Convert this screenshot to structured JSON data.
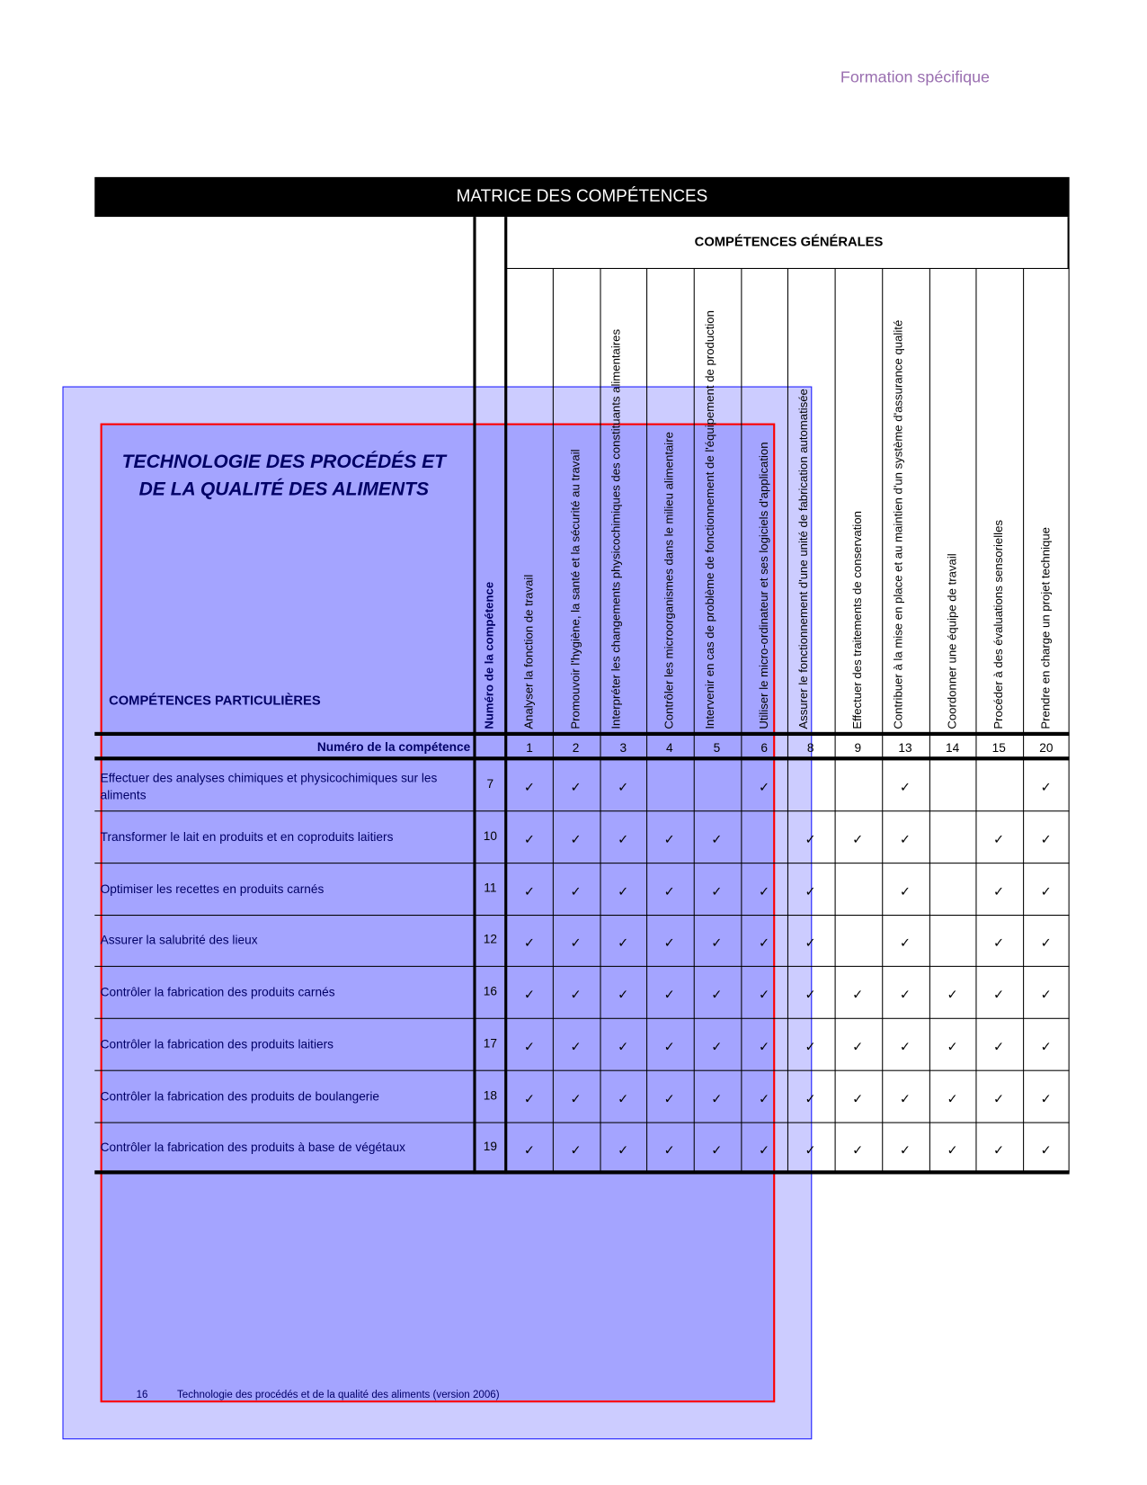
{
  "header_right": "Formation spécifique",
  "matrix_title": "MATRICE DES COMPÉTENCES",
  "general_title": "COMPÉTENCES GÉNÉRALES",
  "program_title_line1": "TECHNOLOGIE DES PROCÉDÉS ET",
  "program_title_line2": "DE LA QUALITÉ DES ALIMENTS",
  "particular_title": "COMPÉTENCES PARTICULIÈRES",
  "number_column_label": "Numéro de la compétence",
  "number_row_label": "Numéro de la compétence",
  "check_glyph": "✓",
  "general_competencies": [
    {
      "label": "Analyser la fonction de travail",
      "number": "1"
    },
    {
      "label": "Promouvoir l'hygiène, la santé et la sécurité au travail",
      "number": "2"
    },
    {
      "label": "Interpréter les changements physicochimiques des constituants alimentaires",
      "number": "3"
    },
    {
      "label": "Contrôler les microorganismes dans le milieu alimentaire",
      "number": "4"
    },
    {
      "label": "Intervenir en cas de problème de fonctionnement de l'équipement de production",
      "number": "5"
    },
    {
      "label": "Utiliser le micro-ordinateur et ses logiciels d'application",
      "number": "6"
    },
    {
      "label": "Assurer le fonctionnement d'une unité de fabrication automatisée",
      "number": "8"
    },
    {
      "label": "Effectuer des traitements de conservation",
      "number": "9"
    },
    {
      "label": "Contribuer à la mise en place et au maintien d'un système d'assurance qualité",
      "number": "13"
    },
    {
      "label": "Coordonner une équipe de travail",
      "number": "14"
    },
    {
      "label": "Procéder à des évaluations sensorielles",
      "number": "15"
    },
    {
      "label": "Prendre en charge un projet technique",
      "number": "20"
    }
  ],
  "particular_competencies": [
    {
      "label": "Effectuer des analyses chimiques et physicochimiques sur les aliments",
      "number": "7",
      "marks": [
        1,
        1,
        1,
        0,
        0,
        1,
        0,
        0,
        1,
        0,
        0,
        1
      ]
    },
    {
      "label": "Transformer le lait en produits et en coproduits laitiers",
      "number": "10",
      "marks": [
        1,
        1,
        1,
        1,
        1,
        0,
        1,
        1,
        1,
        0,
        1,
        1
      ]
    },
    {
      "label": "Optimiser les recettes en produits carnés",
      "number": "11",
      "marks": [
        1,
        1,
        1,
        1,
        1,
        1,
        1,
        0,
        1,
        0,
        1,
        1
      ]
    },
    {
      "label": "Assurer la salubrité des lieux",
      "number": "12",
      "marks": [
        1,
        1,
        1,
        1,
        1,
        1,
        1,
        0,
        1,
        0,
        1,
        1
      ]
    },
    {
      "label": "Contrôler la fabrication des produits carnés",
      "number": "16",
      "marks": [
        1,
        1,
        1,
        1,
        1,
        1,
        1,
        1,
        1,
        1,
        1,
        1
      ]
    },
    {
      "label": "Contrôler la fabrication des produits laitiers",
      "number": "17",
      "marks": [
        1,
        1,
        1,
        1,
        1,
        1,
        1,
        1,
        1,
        1,
        1,
        1
      ]
    },
    {
      "label": "Contrôler la fabrication des produits de boulangerie",
      "number": "18",
      "marks": [
        1,
        1,
        1,
        1,
        1,
        1,
        1,
        1,
        1,
        1,
        1,
        1
      ]
    },
    {
      "label": "Contrôler la fabrication des produits à base de végétaux",
      "number": "19",
      "marks": [
        1,
        1,
        1,
        1,
        1,
        1,
        1,
        1,
        1,
        1,
        1,
        1
      ]
    }
  ],
  "footer": {
    "page": "16",
    "text": "Technologie des procédés et de la qualité des aliments (version 2006)"
  }
}
